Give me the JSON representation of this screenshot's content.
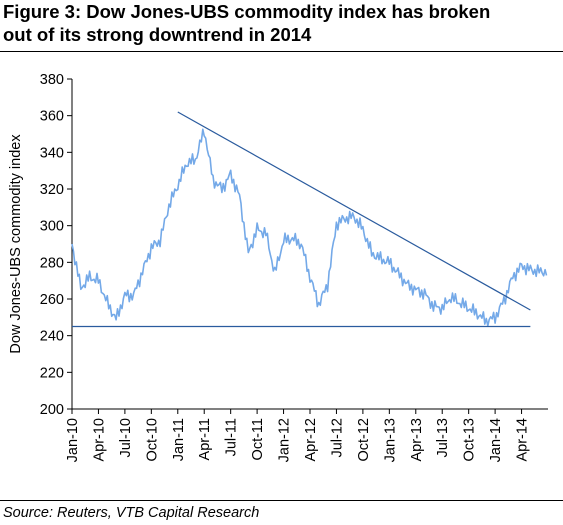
{
  "title": "Figure 3: Dow Jones-UBS commodity index has broken\nout of its strong downtrend in 2014",
  "source": "Source: Reuters, VTB Capital Research",
  "colors": {
    "series": "#74a9e8",
    "trendline": "#2a5b9e",
    "axis": "#000000"
  },
  "chart_data": {
    "type": "line",
    "title": "Figure 3: Dow Jones-UBS commodity index has broken out of its strong downtrend in 2014",
    "xlabel": "",
    "ylabel": "Dow Jones-UBS commodity index",
    "ylim": [
      200,
      380
    ],
    "yticks": [
      200,
      220,
      240,
      260,
      280,
      300,
      320,
      340,
      360,
      380
    ],
    "xlim": [
      "Jan-10",
      "Jun-14"
    ],
    "xticks": [
      "Jan-10",
      "Apr-10",
      "Jul-10",
      "Oct-10",
      "Jan-11",
      "Apr-11",
      "Jul-11",
      "Oct-11",
      "Jan-12",
      "Apr-12",
      "Jul-12",
      "Oct-12",
      "Jan-13",
      "Apr-13",
      "Jul-13",
      "Oct-13",
      "Jan-14",
      "Apr-14"
    ],
    "grid": false,
    "legend": "none",
    "series": [
      {
        "x": [
          "Jan-10",
          "Feb-10",
          "Mar-10",
          "Apr-10",
          "May-10",
          "Jun-10",
          "Jul-10",
          "Aug-10",
          "Sep-10",
          "Oct-10",
          "Nov-10",
          "Dec-10",
          "Jan-11",
          "Feb-11",
          "Mar-11",
          "Apr-11",
          "May-11",
          "Jun-11",
          "Jul-11",
          "Aug-11",
          "Sep-11",
          "Oct-11",
          "Nov-11",
          "Dec-11",
          "Jan-12",
          "Feb-12",
          "Mar-12",
          "Apr-12",
          "May-12",
          "Jun-12",
          "Jul-12",
          "Aug-12",
          "Sep-12",
          "Oct-12",
          "Nov-12",
          "Dec-12",
          "Jan-13",
          "Feb-13",
          "Mar-13",
          "Apr-13",
          "May-13",
          "Jun-13",
          "Jul-13",
          "Aug-13",
          "Sep-13",
          "Oct-13",
          "Nov-13",
          "Dec-13",
          "Jan-14",
          "Feb-14",
          "Mar-14",
          "Apr-14",
          "May-14",
          "Jun-14"
        ],
        "values": [
          290,
          266,
          272,
          270,
          258,
          249,
          262,
          262,
          275,
          288,
          292,
          311,
          322,
          334,
          336,
          352,
          325,
          320,
          328,
          316,
          285,
          298,
          296,
          274,
          292,
          293,
          290,
          272,
          257,
          268,
          301,
          304,
          305,
          298,
          285,
          282,
          280,
          274,
          268,
          265,
          263,
          256,
          255,
          261,
          258,
          255,
          252,
          248,
          250,
          259,
          272,
          278,
          276,
          275
        ]
      }
    ],
    "annotations": [
      {
        "type": "trendline",
        "from": {
          "x": "Jan-11",
          "y": 362
        },
        "to": {
          "x": "May-14",
          "y": 254
        }
      },
      {
        "type": "support-line",
        "from": {
          "x": "Jan-10",
          "y": 245
        },
        "to": {
          "x": "May-14",
          "y": 245
        }
      }
    ]
  }
}
